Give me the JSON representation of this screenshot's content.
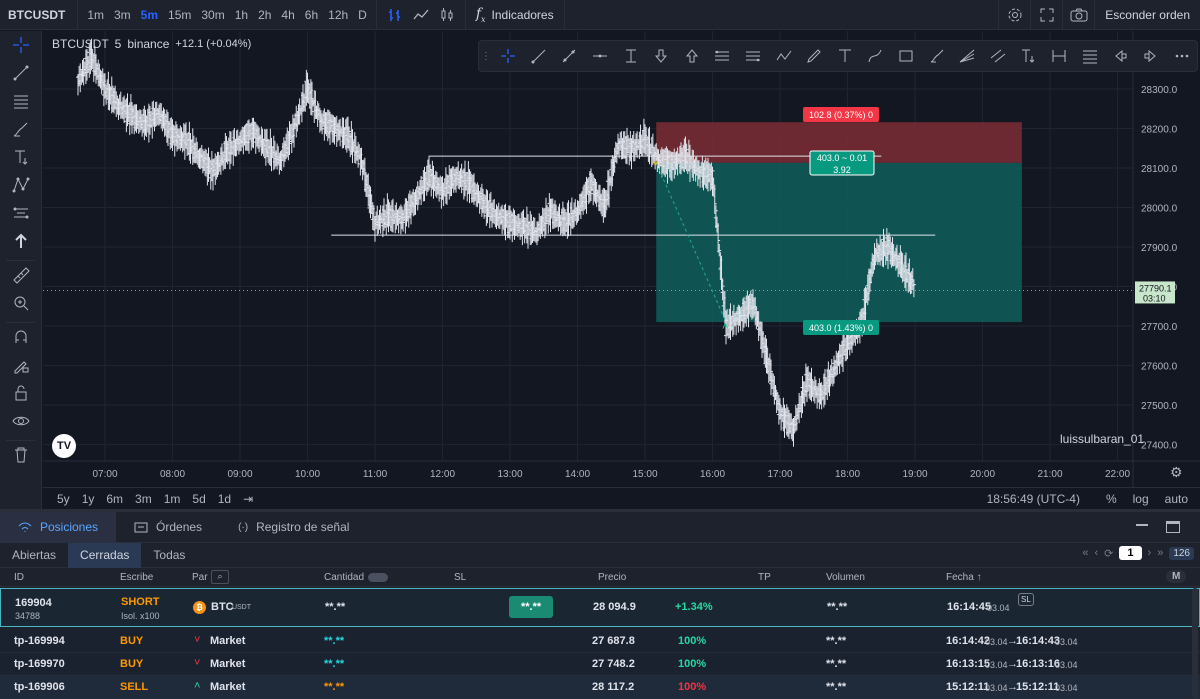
{
  "topbar": {
    "symbol": "BTCUSDT",
    "timeframes": [
      "1m",
      "3m",
      "5m",
      "15m",
      "30m",
      "1h",
      "2h",
      "4h",
      "6h",
      "12h",
      "D"
    ],
    "active_timeframe": "5m",
    "indicators_label": "Indicadores",
    "hide_order_label": "Esconder orden",
    "accent": "#2962ff"
  },
  "legend": {
    "symbol": "BTCUSDT",
    "interval": "5",
    "exchange": "binance",
    "change": "+12.1 (+0.04%)"
  },
  "chart": {
    "price_ticks": [
      "28300.0",
      "28200.0",
      "28100.0",
      "28000.0",
      "27900.0",
      "27800.0",
      "27700.0",
      "27600.0",
      "27500.0",
      "27400.0"
    ],
    "time_ticks": [
      "07:00",
      "08:00",
      "09:00",
      "10:00",
      "11:00",
      "12:00",
      "13:00",
      "14:00",
      "15:00",
      "16:00",
      "17:00",
      "18:00",
      "19:00",
      "20:00",
      "21:00",
      "22:00"
    ],
    "current_price": "27790.1",
    "countdown": "03:10",
    "watermark": "luissulbaran_01",
    "stop_label": "102.8 (0.37%) 0",
    "entry_label_1": "403.0 ~ 0.01",
    "entry_label_2": "3.92",
    "target_label": "403.0 (1.43%) 0",
    "colors": {
      "stop_zone": "#7c2d34",
      "target_zone": "#0f5f5a",
      "stop_tag": "#f23645",
      "target_tag": "#089981"
    }
  },
  "bottom_toolbar": {
    "ranges": [
      "5y",
      "1y",
      "6m",
      "3m",
      "1m",
      "5d",
      "1d"
    ],
    "clock": "18:56:49 (UTC-4)",
    "percent": "%",
    "log": "log",
    "auto": "auto"
  },
  "panel": {
    "tabs": [
      {
        "label": "Posiciones"
      },
      {
        "label": "Órdenes"
      },
      {
        "label": "Registro de señal"
      }
    ],
    "subtabs": [
      {
        "label": "Abiertas"
      },
      {
        "label": "Cerradas"
      },
      {
        "label": "Todas"
      }
    ],
    "page": "1",
    "count": "126",
    "columns": {
      "id": "ID",
      "escribe": "Escribe",
      "par": "Par",
      "cantidad": "Cantidad",
      "sl": "SL",
      "precio": "Precio",
      "tp": "TP",
      "volumen": "Volumen",
      "fecha": "Fecha ↑",
      "m": "M"
    },
    "main_row": {
      "id": "169904",
      "subid": "34788",
      "side": "SHORT",
      "margin": "Isol. x100",
      "pair": "BTC",
      "pair_quote": ".USDT",
      "qty": "**.**",
      "sl": "**.**",
      "price": "28 094.9",
      "pnl": "+1.34%",
      "volume": "**.**",
      "time": "16:14:45",
      "date": "03.04",
      "badge": "SL"
    },
    "rows": [
      {
        "id": "tp-169994",
        "side": "BUY",
        "type": "Market",
        "qty": "**.**",
        "price": "27 687.8",
        "pct": "100%",
        "vol": "**.**",
        "t1": "16:14:42",
        "d1": "03.04",
        "t2": "16:14:43",
        "d2": "03.04"
      },
      {
        "id": "tp-169970",
        "side": "BUY",
        "type": "Market",
        "qty": "**.**",
        "price": "27 748.2",
        "pct": "100%",
        "vol": "**.**",
        "t1": "16:13:15",
        "d1": "03.04",
        "t2": "16:13:16",
        "d2": "03.04"
      },
      {
        "id": "tp-169906",
        "side": "SELL",
        "type": "Market",
        "qty": "**.**",
        "price": "28 117.2",
        "pct": "100%",
        "vol": "**.**",
        "t1": "15:12:11",
        "d1": "03.04",
        "t2": "15:12:11",
        "d2": "03.04"
      }
    ]
  }
}
